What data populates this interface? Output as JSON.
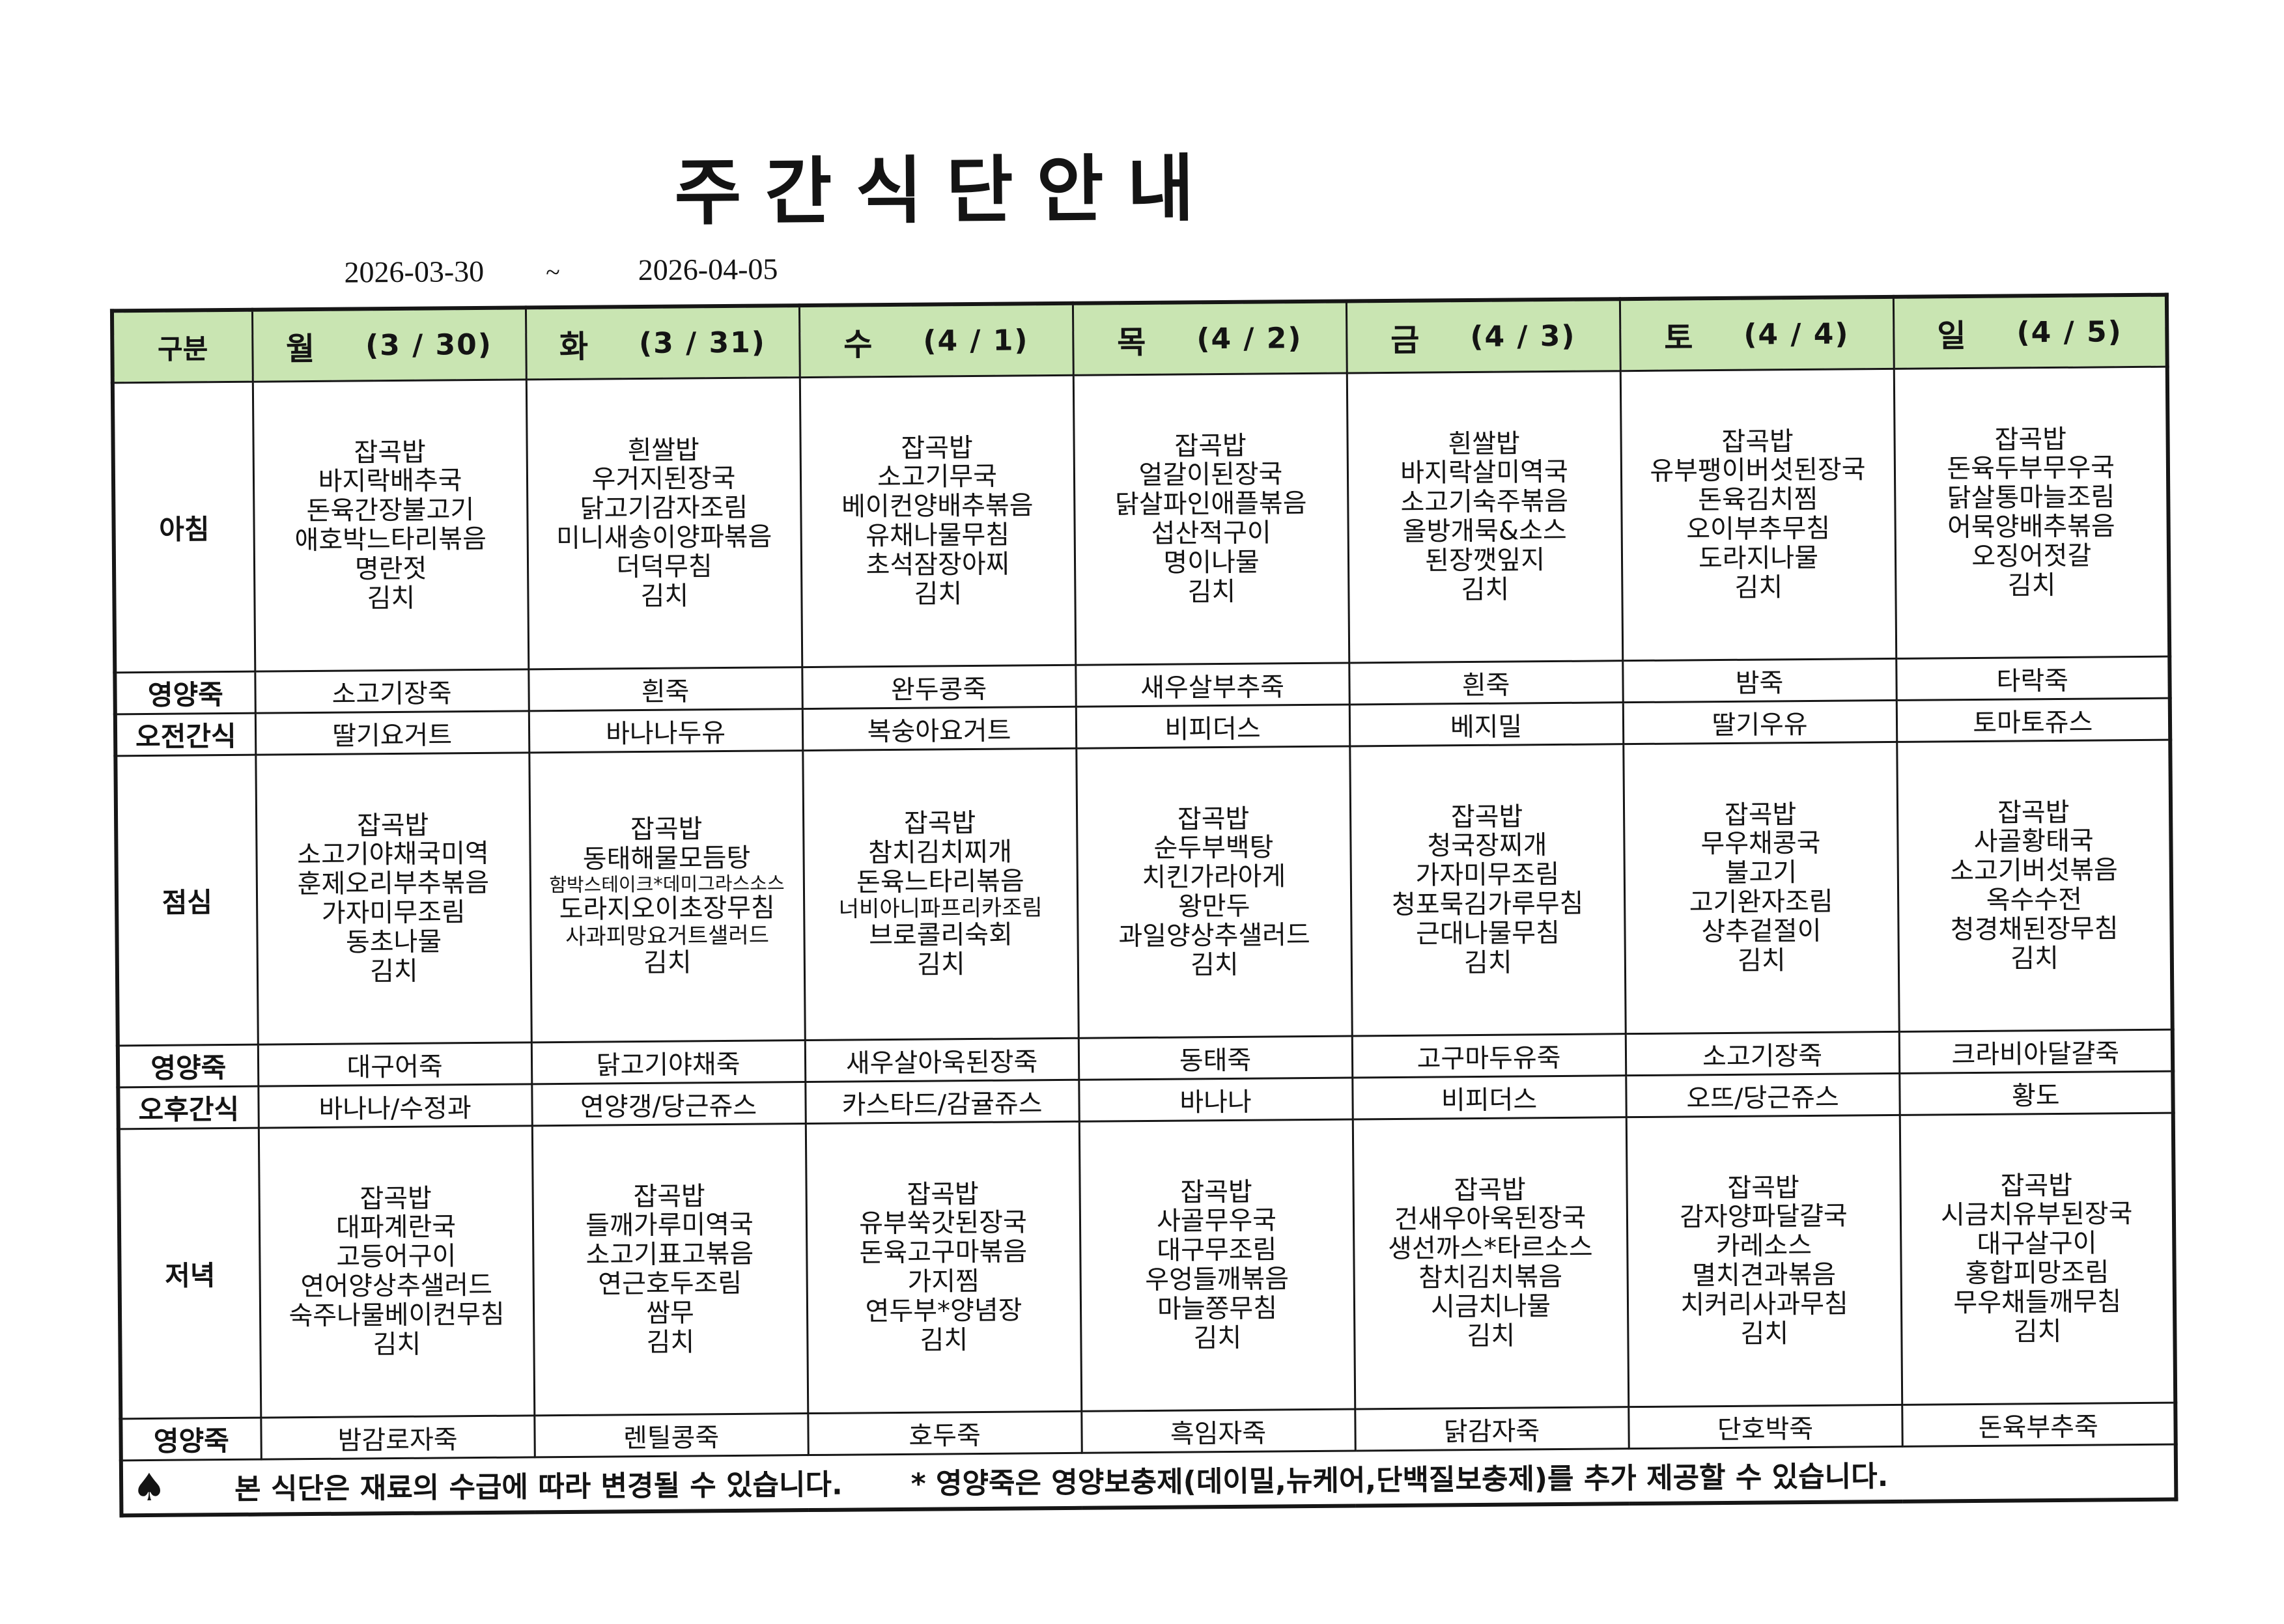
{
  "title": "주간식단안내",
  "date_range": {
    "start": "2026-03-30",
    "separator": "~",
    "end": "2026-04-05"
  },
  "colors": {
    "header_green": "#c9e5b2",
    "border": "#161616"
  },
  "table": {
    "corner_label": "구분",
    "days": [
      {
        "name": "월",
        "date": "(3 / 30)"
      },
      {
        "name": "화",
        "date": "(3 / 31)"
      },
      {
        "name": "수",
        "date": "(4 / 1)"
      },
      {
        "name": "목",
        "date": "(4 / 2)"
      },
      {
        "name": "금",
        "date": "(4 / 3)"
      },
      {
        "name": "토",
        "date": "(4 / 4)"
      },
      {
        "name": "일",
        "date": "(4 / 5)"
      }
    ],
    "rows": [
      {
        "label": "아침",
        "type": "menu",
        "cells": [
          [
            "잡곡밥",
            "바지락배추국",
            "돈육간장불고기",
            "애호박느타리볶음",
            "명란젓",
            "김치"
          ],
          [
            "흰쌀밥",
            "우거지된장국",
            "닭고기감자조림",
            "미니새송이양파볶음",
            "더덕무침",
            "김치"
          ],
          [
            "잡곡밥",
            "소고기무국",
            "베이컨양배추볶음",
            "유채나물무침",
            "초석잠장아찌",
            "김치"
          ],
          [
            "잡곡밥",
            "얼갈이된장국",
            "닭살파인애플볶음",
            "섭산적구이",
            "명이나물",
            "김치"
          ],
          [
            "흰쌀밥",
            "바지락살미역국",
            "소고기숙주볶음",
            "올방개묵&소스",
            "된장깻잎지",
            "김치"
          ],
          [
            "잡곡밥",
            "유부팽이버섯된장국",
            "돈육김치찜",
            "오이부추무침",
            "도라지나물",
            "김치"
          ],
          [
            "잡곡밥",
            "돈육두부무우국",
            "닭살통마늘조림",
            "어묵양배추볶음",
            "오징어젓갈",
            "김치"
          ]
        ]
      },
      {
        "label": "영양죽",
        "type": "single",
        "cells": [
          "소고기장죽",
          "흰죽",
          "완두콩죽",
          "새우살부추죽",
          "흰죽",
          "밤죽",
          "타락죽"
        ]
      },
      {
        "label": "오전간식",
        "type": "single",
        "cells": [
          "딸기요거트",
          "바나나두유",
          "복숭아요거트",
          "비피더스",
          "베지밀",
          "딸기우유",
          "토마토쥬스"
        ]
      },
      {
        "label": "점심",
        "type": "menu",
        "cells": [
          [
            "잡곡밥",
            "소고기야채국미역",
            "훈제오리부추볶음",
            "가자미무조림",
            "동초나물",
            "김치"
          ],
          [
            "잡곡밥",
            "동태해물모듬탕",
            "함박스테이크*데미그라스소스",
            "도라지오이초장무침",
            "사과피망요거트샐러드",
            "김치"
          ],
          [
            "잡곡밥",
            "참치김치찌개",
            "돈육느타리볶음",
            "너비아니파프리카조림",
            "브로콜리숙회",
            "김치"
          ],
          [
            "잡곡밥",
            "순두부백탕",
            "치킨가라아게",
            "왕만두",
            "과일양상추샐러드",
            "김치"
          ],
          [
            "잡곡밥",
            "청국장찌개",
            "가자미무조림",
            "청포묵김가루무침",
            "근대나물무침",
            "김치"
          ],
          [
            "잡곡밥",
            "무우채콩국",
            "불고기",
            "고기완자조림",
            "상추겉절이",
            "김치"
          ],
          [
            "잡곡밥",
            "사골황태국",
            "소고기버섯볶음",
            "옥수수전",
            "청경채된장무침",
            "김치"
          ]
        ]
      },
      {
        "label": "영양죽",
        "type": "single",
        "cells": [
          "대구어죽",
          "닭고기야채죽",
          "새우살아욱된장죽",
          "동태죽",
          "고구마두유죽",
          "소고기장죽",
          "크라비아달걀죽"
        ]
      },
      {
        "label": "오후간식",
        "type": "single",
        "cells": [
          "바나나/수정과",
          "연양갱/당근쥬스",
          "카스타드/감귤쥬스",
          "바나나",
          "비피더스",
          "오뜨/당근쥬스",
          "황도"
        ]
      },
      {
        "label": "저녁",
        "type": "menu",
        "cells": [
          [
            "잡곡밥",
            "대파계란국",
            "고등어구이",
            "연어양상추샐러드",
            "숙주나물베이컨무침",
            "김치"
          ],
          [
            "잡곡밥",
            "들깨가루미역국",
            "소고기표고볶음",
            "연근호두조림",
            "쌈무",
            "김치"
          ],
          [
            "잡곡밥",
            "유부쑥갓된장국",
            "돈육고구마볶음",
            "가지찜",
            "연두부*양념장",
            "김치"
          ],
          [
            "잡곡밥",
            "사골무우국",
            "대구무조림",
            "우엉들깨볶음",
            "마늘쫑무침",
            "김치"
          ],
          [
            "잡곡밥",
            "건새우아욱된장국",
            "생선까스*타르소스",
            "참치김치볶음",
            "시금치나물",
            "김치"
          ],
          [
            "잡곡밥",
            "감자양파달걀국",
            "카레소스",
            "멸치견과볶음",
            "치커리사과무침",
            "김치"
          ],
          [
            "잡곡밥",
            "시금치유부된장국",
            "대구살구이",
            "홍합피망조림",
            "무우채들깨무침",
            "김치"
          ]
        ]
      },
      {
        "label": "영양죽",
        "type": "single",
        "cells": [
          "밤감로자죽",
          "렌틸콩죽",
          "호두죽",
          "흑임자죽",
          "닭감자죽",
          "단호박죽",
          "돈육부추죽"
        ]
      }
    ]
  },
  "footnote": {
    "bullet": "♠",
    "note1": "본 식단은 재료의 수급에 따라 변경될 수 있습니다.",
    "note2": "* 영양죽은 영양보충제(데이밀,뉴케어,단백질보충제)를 추가 제공할 수 있습니다."
  }
}
